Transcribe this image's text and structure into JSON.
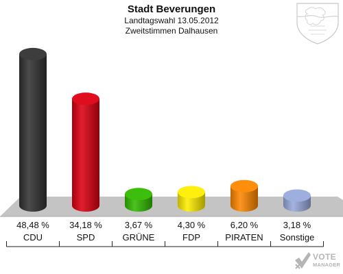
{
  "header": {
    "title": "Stadt Beverungen",
    "subtitle": "Landtagswahl 13.05.2012",
    "subtitle2": "Zweitstimmen Dalhausen"
  },
  "brand": {
    "line1": "VOTE",
    "line2": "MANAGER"
  },
  "chart_data": {
    "type": "bar",
    "title": "Stadt Beverungen",
    "subtitle": "Landtagswahl 13.05.2012 · Zweitstimmen Dalhausen",
    "categories": [
      "CDU",
      "SPD",
      "GRÜNE",
      "FDP",
      "PIRATEN",
      "Sonstige"
    ],
    "values": [
      48.48,
      34.18,
      3.67,
      4.3,
      6.2,
      3.18
    ],
    "value_labels": [
      "48,48 %",
      "34,18 %",
      "3,67 %",
      "4,30 %",
      "6,20 %",
      "3,18 %"
    ],
    "colors": [
      "#333333",
      "#dd0011",
      "#33bb00",
      "#ffee00",
      "#ff8800",
      "#99aadd"
    ],
    "unit": "%",
    "ylim": [
      0,
      50
    ],
    "grid": false,
    "legend": "none"
  },
  "colors": {
    "floor": "#c4c4c4",
    "background": "#ffffff"
  }
}
